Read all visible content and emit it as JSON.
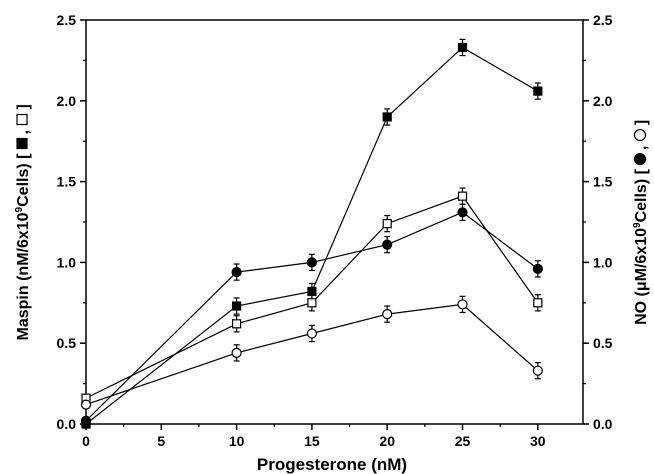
{
  "chart_data": {
    "type": "line",
    "xlabel": "Progesterone (nM)",
    "ylabel_left_text": "Maspin (nM/6x10",
    "ylabel_left_sup": "9",
    "ylabel_left_tail": "Cells) [",
    "ylabel_left_markers": [
      "filled-square",
      "open-square"
    ],
    "ylabel_right_text": "NO (μM/6x10",
    "ylabel_right_sup": "9",
    "ylabel_right_tail": "Cells) [",
    "ylabel_right_markers": [
      "filled-circle",
      "open-circle"
    ],
    "xlim": [
      0,
      33
    ],
    "ylim_left": [
      0,
      2.5
    ],
    "ylim_right": [
      0,
      2.5
    ],
    "x_ticks": [
      0,
      5,
      10,
      15,
      20,
      25,
      30
    ],
    "x_tick_labels": [
      "0",
      "5",
      "10",
      "15",
      "20",
      "25",
      "30"
    ],
    "y_ticks": [
      0,
      0.5,
      1.0,
      1.5,
      2.0,
      2.5
    ],
    "y_tick_labels": [
      "0.0",
      "0.5",
      "1.0",
      "1.5",
      "2.0",
      "2.5"
    ],
    "series": [
      {
        "marker": "filled-square",
        "axis": "left",
        "x": [
          0,
          10,
          15,
          20,
          25,
          30
        ],
        "values": [
          0.0,
          0.73,
          0.82,
          1.9,
          2.33,
          2.06
        ],
        "err": [
          0.02,
          0.05,
          0.05,
          0.05,
          0.05,
          0.05
        ]
      },
      {
        "marker": "open-square",
        "axis": "left",
        "x": [
          0,
          10,
          15,
          20,
          25,
          30
        ],
        "values": [
          0.16,
          0.62,
          0.75,
          1.24,
          1.41,
          0.75
        ],
        "err": [
          0.02,
          0.05,
          0.05,
          0.05,
          0.05,
          0.05
        ]
      },
      {
        "marker": "filled-circle",
        "axis": "right",
        "x": [
          0,
          10,
          15,
          20,
          25,
          30
        ],
        "values": [
          0.02,
          0.94,
          1.0,
          1.11,
          1.31,
          0.96
        ],
        "err": [
          0.02,
          0.05,
          0.05,
          0.05,
          0.05,
          0.05
        ]
      },
      {
        "marker": "open-circle",
        "axis": "right",
        "x": [
          0,
          10,
          15,
          20,
          25,
          30
        ],
        "values": [
          0.12,
          0.44,
          0.56,
          0.68,
          0.74,
          0.33
        ],
        "err": [
          0.02,
          0.05,
          0.05,
          0.05,
          0.05,
          0.05
        ]
      }
    ],
    "grid": false,
    "legend": "none",
    "color": "#000000"
  }
}
